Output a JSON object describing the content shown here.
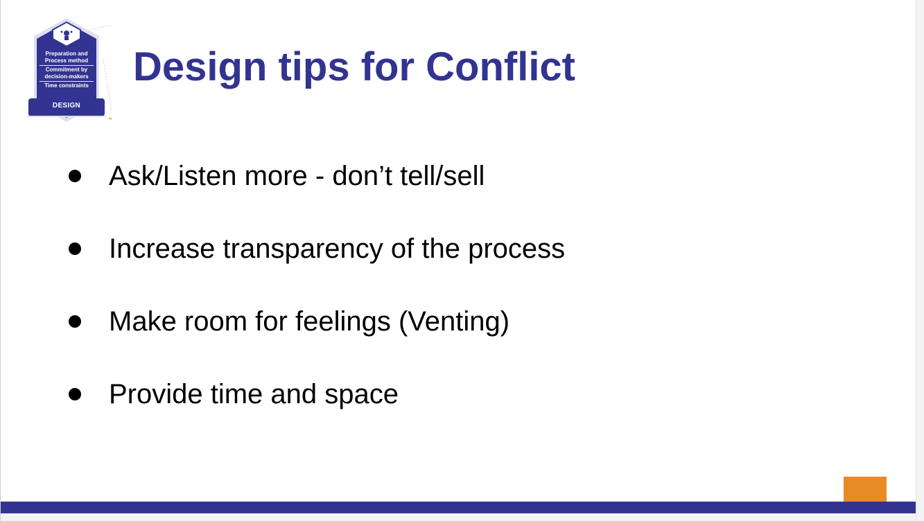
{
  "badge": {
    "lines": [
      "Preparation and",
      "Process method",
      "Commitment by",
      "decision-makers",
      "Time constraints"
    ],
    "label": "DESIGN"
  },
  "slide": {
    "title": "Design tips for Conflict",
    "bullets": [
      "Ask/Listen more - don’t tell/sell",
      "Increase transparency of the process",
      "Make room for feelings (Venting)",
      "Provide time and space"
    ]
  },
  "colors": {
    "title": "#333391",
    "footer_bar": "#333391",
    "accent_square": "#e88b24",
    "badge_fill": "#333391"
  }
}
